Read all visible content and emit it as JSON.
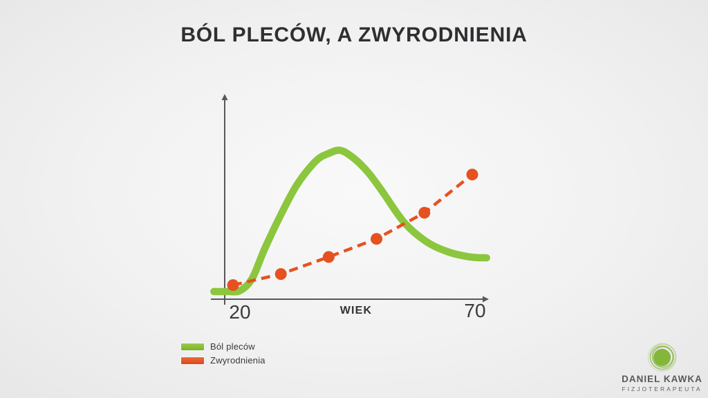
{
  "slide": {
    "title": "BÓL PLECÓW, A ZWYRODNIENIA"
  },
  "chart_data": {
    "type": "line",
    "title": "BÓL PLECÓW, A ZWYRODNIENIA",
    "xlabel": "WIEK",
    "ylabel": "",
    "x_ticks": [
      "20",
      "70"
    ],
    "x_range": [
      20,
      70
    ],
    "y_range": [
      0,
      100
    ],
    "grid": false,
    "legend_position": "bottom-left",
    "axis_color": "#58585a",
    "series": [
      {
        "name": "Ból pleców",
        "color": "#8cc63e",
        "style": "smooth-solid-thick",
        "points": [
          [
            16,
            3.8
          ],
          [
            19,
            3.8
          ],
          [
            21.5,
            4.3
          ],
          [
            24,
            10.3
          ],
          [
            26.6,
            25
          ],
          [
            30,
            42
          ],
          [
            33.4,
            57
          ],
          [
            37.3,
            68.7
          ],
          [
            40,
            72.5
          ],
          [
            42.5,
            74
          ],
          [
            45.4,
            69.8
          ],
          [
            48.3,
            62.9
          ],
          [
            51.2,
            53.6
          ],
          [
            55.8,
            38.1
          ],
          [
            60.5,
            28.5
          ],
          [
            65,
            23.5
          ],
          [
            69.6,
            21
          ],
          [
            73,
            20.6
          ]
        ]
      },
      {
        "name": "Zwyrodnienia",
        "color": "#e5521f",
        "style": "dashed-with-dots",
        "points": [
          [
            20,
            7
          ],
          [
            30,
            12.5
          ],
          [
            40,
            21
          ],
          [
            50,
            30
          ],
          [
            60,
            43
          ],
          [
            70,
            62
          ]
        ]
      }
    ]
  },
  "legend": {
    "items": [
      {
        "label": "Ból pleców",
        "color": "#8cc63e",
        "color_light": "#9ccb44",
        "color_dark": "#7cb133"
      },
      {
        "label": "Zwyrodnienia",
        "color": "#e5521f",
        "color_light": "#ec6a33",
        "color_dark": "#d9481d"
      }
    ]
  },
  "branding": {
    "name": "DANIEL KAWKA",
    "role": "FIZJOTERAPEUTA",
    "logo_icon": "concentric-green-circle",
    "logo_color": "#85b63c"
  }
}
